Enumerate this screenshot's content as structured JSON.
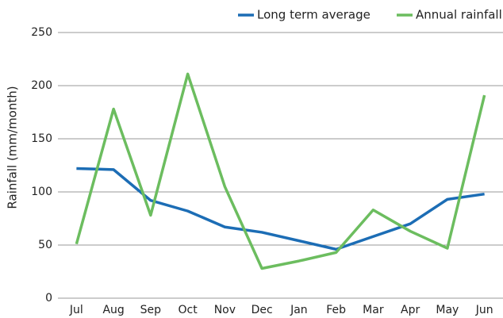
{
  "chart_data": {
    "type": "line",
    "ylabel": "Rainfall (mm/month)",
    "categories": [
      "Jul",
      "Aug",
      "Sep",
      "Oct",
      "Nov",
      "Dec",
      "Jan",
      "Feb",
      "Mar",
      "Apr",
      "May",
      "Jun"
    ],
    "series": [
      {
        "name": "Long term average",
        "color": "#1c6db5",
        "values": [
          122,
          121,
          92,
          82,
          67,
          62,
          54,
          46,
          58,
          70,
          93,
          98
        ]
      },
      {
        "name": "Annual rainfall",
        "color": "#6cbd5f",
        "values": [
          51,
          178,
          78,
          211,
          105,
          28,
          35,
          43,
          83,
          63,
          47,
          191
        ]
      }
    ],
    "ylim": [
      0,
      250
    ],
    "yticks": [
      0,
      50,
      100,
      150,
      200,
      250
    ],
    "grid": true,
    "legend": "top-right"
  }
}
